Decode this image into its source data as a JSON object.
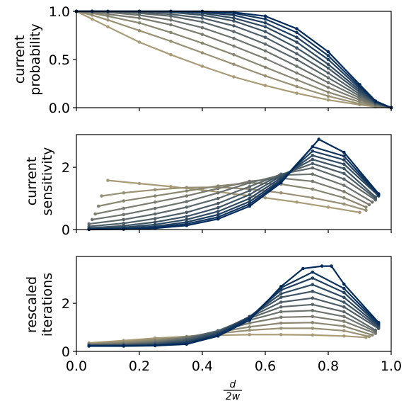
{
  "x_axis": {
    "label_numerator": "d",
    "label_denominator": "2w",
    "range": [
      0.0,
      1.0
    ],
    "tick_labels": [
      "0.0",
      "0.2",
      "0.4",
      "0.6",
      "0.8",
      "1.0"
    ],
    "tick_values": [
      0.0,
      0.2,
      0.4,
      0.6,
      0.8,
      1.0
    ]
  },
  "colors": {
    "palette_start": "#a99b76",
    "palette_end": "#002b5c"
  },
  "chart_data": [
    {
      "type": "line",
      "ylabel_lines": [
        "current",
        "probability"
      ],
      "ylim": [
        0.0,
        1.0
      ],
      "y_tick_labels": [
        "0.0",
        "0.5",
        "1.0"
      ],
      "y_tick_values": [
        0.0,
        0.5,
        1.0
      ],
      "grid": false,
      "series": [
        {
          "x": [
            0,
            0.05,
            0.1,
            0.2,
            0.3,
            0.4,
            0.5,
            0.6,
            0.7,
            0.8,
            0.9,
            0.95,
            1.0
          ],
          "y": [
            1.0,
            0.92,
            0.84,
            0.68,
            0.55,
            0.43,
            0.32,
            0.23,
            0.15,
            0.08,
            0.03,
            0.01,
            0.0
          ]
        },
        {
          "x": [
            0,
            0.05,
            0.1,
            0.2,
            0.3,
            0.4,
            0.5,
            0.6,
            0.7,
            0.8,
            0.9,
            0.95,
            1.0
          ],
          "y": [
            1.0,
            0.96,
            0.91,
            0.8,
            0.69,
            0.57,
            0.45,
            0.33,
            0.22,
            0.12,
            0.04,
            0.015,
            0.0
          ]
        },
        {
          "x": [
            0,
            0.05,
            0.1,
            0.2,
            0.3,
            0.4,
            0.5,
            0.6,
            0.7,
            0.8,
            0.9,
            0.95,
            1.0
          ],
          "y": [
            1.0,
            0.98,
            0.95,
            0.88,
            0.78,
            0.67,
            0.55,
            0.42,
            0.29,
            0.16,
            0.06,
            0.02,
            0.0
          ]
        },
        {
          "x": [
            0,
            0.05,
            0.1,
            0.2,
            0.3,
            0.4,
            0.5,
            0.6,
            0.7,
            0.8,
            0.9,
            0.95,
            1.0
          ],
          "y": [
            1.0,
            0.99,
            0.97,
            0.93,
            0.86,
            0.76,
            0.64,
            0.51,
            0.36,
            0.21,
            0.08,
            0.025,
            0.0
          ]
        },
        {
          "x": [
            0,
            0.05,
            0.1,
            0.2,
            0.3,
            0.4,
            0.5,
            0.6,
            0.7,
            0.8,
            0.9,
            0.95,
            1.0
          ],
          "y": [
            1.0,
            1.0,
            0.99,
            0.96,
            0.91,
            0.83,
            0.72,
            0.59,
            0.43,
            0.26,
            0.1,
            0.03,
            0.0
          ]
        },
        {
          "x": [
            0,
            0.05,
            0.1,
            0.2,
            0.3,
            0.4,
            0.5,
            0.6,
            0.7,
            0.8,
            0.9,
            0.95,
            1.0
          ],
          "y": [
            1.0,
            1.0,
            1.0,
            0.98,
            0.95,
            0.89,
            0.79,
            0.66,
            0.5,
            0.31,
            0.12,
            0.04,
            0.0
          ]
        },
        {
          "x": [
            0,
            0.05,
            0.1,
            0.2,
            0.3,
            0.4,
            0.5,
            0.6,
            0.7,
            0.8,
            0.9,
            0.95,
            1.0
          ],
          "y": [
            1.0,
            1.0,
            1.0,
            0.99,
            0.97,
            0.93,
            0.85,
            0.73,
            0.56,
            0.36,
            0.14,
            0.045,
            0.0
          ]
        },
        {
          "x": [
            0,
            0.05,
            0.1,
            0.2,
            0.3,
            0.4,
            0.5,
            0.6,
            0.7,
            0.8,
            0.9,
            0.95,
            1.0
          ],
          "y": [
            1.0,
            1.0,
            1.0,
            1.0,
            0.99,
            0.96,
            0.9,
            0.79,
            0.62,
            0.41,
            0.16,
            0.05,
            0.0
          ]
        },
        {
          "x": [
            0,
            0.05,
            0.1,
            0.2,
            0.3,
            0.4,
            0.5,
            0.6,
            0.7,
            0.8,
            0.9,
            0.95,
            1.0
          ],
          "y": [
            1.0,
            1.0,
            1.0,
            1.0,
            1.0,
            0.98,
            0.93,
            0.84,
            0.68,
            0.45,
            0.18,
            0.055,
            0.0
          ]
        },
        {
          "x": [
            0,
            0.05,
            0.1,
            0.2,
            0.3,
            0.4,
            0.5,
            0.6,
            0.7,
            0.8,
            0.9,
            0.95,
            1.0
          ],
          "y": [
            1.0,
            1.0,
            1.0,
            1.0,
            1.0,
            0.99,
            0.96,
            0.88,
            0.73,
            0.5,
            0.2,
            0.06,
            0.0
          ]
        },
        {
          "x": [
            0,
            0.05,
            0.1,
            0.2,
            0.3,
            0.4,
            0.5,
            0.6,
            0.7,
            0.8,
            0.9,
            0.95,
            1.0
          ],
          "y": [
            1.0,
            1.0,
            1.0,
            1.0,
            1.0,
            1.0,
            0.98,
            0.92,
            0.78,
            0.54,
            0.22,
            0.065,
            0.0
          ]
        },
        {
          "x": [
            0,
            0.05,
            0.1,
            0.2,
            0.3,
            0.4,
            0.5,
            0.6,
            0.7,
            0.8,
            0.9,
            0.95,
            1.0
          ],
          "y": [
            1.0,
            1.0,
            1.0,
            1.0,
            1.0,
            1.0,
            0.99,
            0.95,
            0.82,
            0.58,
            0.24,
            0.07,
            0.0
          ]
        }
      ]
    },
    {
      "type": "line",
      "ylabel_lines": [
        "current",
        "sensitivity"
      ],
      "ylim": [
        0.0,
        3.05
      ],
      "y_tick_labels": [
        "0",
        "2"
      ],
      "y_tick_values": [
        0,
        2
      ],
      "grid": false,
      "series": [
        {
          "x": [
            0.1,
            0.2,
            0.3,
            0.4,
            0.5,
            0.6,
            0.7,
            0.8,
            0.9
          ],
          "y": [
            1.58,
            1.48,
            1.38,
            1.27,
            1.15,
            1.02,
            0.88,
            0.72,
            0.55
          ]
        },
        {
          "x": [
            0.08,
            0.15,
            0.25,
            0.35,
            0.45,
            0.55,
            0.65,
            0.75,
            0.85,
            0.92
          ],
          "y": [
            1.08,
            1.18,
            1.28,
            1.35,
            1.36,
            1.3,
            1.18,
            1.02,
            0.82,
            0.62
          ]
        },
        {
          "x": [
            0.07,
            0.15,
            0.25,
            0.35,
            0.45,
            0.55,
            0.65,
            0.75,
            0.85,
            0.92
          ],
          "y": [
            0.75,
            0.92,
            1.08,
            1.24,
            1.4,
            1.5,
            1.46,
            1.3,
            1.02,
            0.72
          ]
        },
        {
          "x": [
            0.06,
            0.15,
            0.25,
            0.35,
            0.45,
            0.55,
            0.65,
            0.75,
            0.85,
            0.93
          ],
          "y": [
            0.5,
            0.68,
            0.88,
            1.08,
            1.32,
            1.55,
            1.65,
            1.55,
            1.22,
            0.8
          ]
        },
        {
          "x": [
            0.05,
            0.15,
            0.25,
            0.35,
            0.45,
            0.55,
            0.65,
            0.75,
            0.85,
            0.94
          ],
          "y": [
            0.32,
            0.48,
            0.68,
            0.9,
            1.18,
            1.5,
            1.75,
            1.78,
            1.42,
            0.88
          ]
        },
        {
          "x": [
            0.04,
            0.15,
            0.25,
            0.35,
            0.45,
            0.55,
            0.65,
            0.75,
            0.85,
            0.95
          ],
          "y": [
            0.18,
            0.32,
            0.5,
            0.72,
            1.0,
            1.38,
            1.78,
            1.98,
            1.62,
            0.95
          ]
        },
        {
          "x": [
            0.04,
            0.15,
            0.25,
            0.35,
            0.45,
            0.55,
            0.65,
            0.75,
            0.85,
            0.95
          ],
          "y": [
            0.1,
            0.2,
            0.35,
            0.55,
            0.84,
            1.25,
            1.76,
            2.12,
            1.8,
            1.0
          ]
        },
        {
          "x": [
            0.04,
            0.15,
            0.25,
            0.35,
            0.45,
            0.55,
            0.65,
            0.75,
            0.85,
            0.95
          ],
          "y": [
            0.05,
            0.12,
            0.24,
            0.42,
            0.7,
            1.12,
            1.72,
            2.25,
            1.96,
            1.05
          ]
        },
        {
          "x": [
            0.04,
            0.15,
            0.25,
            0.35,
            0.45,
            0.55,
            0.65,
            0.75,
            0.85,
            0.96
          ],
          "y": [
            0.03,
            0.07,
            0.16,
            0.32,
            0.58,
            1.0,
            1.66,
            2.38,
            2.1,
            1.08
          ]
        },
        {
          "x": [
            0.04,
            0.15,
            0.25,
            0.35,
            0.45,
            0.55,
            0.65,
            0.75,
            0.85,
            0.96
          ],
          "y": [
            0.02,
            0.04,
            0.1,
            0.24,
            0.48,
            0.9,
            1.6,
            2.52,
            2.24,
            1.1
          ]
        },
        {
          "x": [
            0.04,
            0.15,
            0.25,
            0.35,
            0.45,
            0.55,
            0.65,
            0.75,
            0.85,
            0.96
          ],
          "y": [
            0.01,
            0.02,
            0.06,
            0.18,
            0.4,
            0.82,
            1.55,
            2.66,
            2.36,
            1.12
          ]
        },
        {
          "x": [
            0.04,
            0.15,
            0.25,
            0.35,
            0.45,
            0.55,
            0.65,
            0.77,
            0.85,
            0.96
          ],
          "y": [
            0.0,
            0.01,
            0.04,
            0.13,
            0.34,
            0.75,
            1.5,
            2.9,
            2.48,
            1.15
          ]
        }
      ]
    },
    {
      "type": "line",
      "ylabel_lines": [
        "rescaled",
        "iterations"
      ],
      "ylim": [
        0.0,
        3.95
      ],
      "y_tick_labels": [
        "0",
        "2"
      ],
      "y_tick_values": [
        0,
        2
      ],
      "grid": false,
      "series": [
        {
          "x": [
            0.04,
            0.15,
            0.25,
            0.35,
            0.45,
            0.55,
            0.65,
            0.75,
            0.85,
            0.92
          ],
          "y": [
            0.35,
            0.45,
            0.55,
            0.62,
            0.67,
            0.7,
            0.7,
            0.68,
            0.64,
            0.58
          ]
        },
        {
          "x": [
            0.04,
            0.15,
            0.25,
            0.35,
            0.45,
            0.55,
            0.65,
            0.75,
            0.85,
            0.93
          ],
          "y": [
            0.32,
            0.4,
            0.5,
            0.62,
            0.75,
            0.88,
            0.96,
            0.96,
            0.86,
            0.62
          ]
        },
        {
          "x": [
            0.04,
            0.15,
            0.25,
            0.35,
            0.45,
            0.55,
            0.65,
            0.75,
            0.85,
            0.94
          ],
          "y": [
            0.3,
            0.36,
            0.46,
            0.6,
            0.8,
            1.02,
            1.18,
            1.2,
            1.05,
            0.68
          ]
        },
        {
          "x": [
            0.04,
            0.15,
            0.25,
            0.35,
            0.45,
            0.55,
            0.65,
            0.75,
            0.85,
            0.95
          ],
          "y": [
            0.28,
            0.33,
            0.42,
            0.58,
            0.84,
            1.18,
            1.42,
            1.45,
            1.25,
            0.75
          ]
        },
        {
          "x": [
            0.04,
            0.15,
            0.25,
            0.35,
            0.45,
            0.55,
            0.65,
            0.75,
            0.85,
            0.95
          ],
          "y": [
            0.27,
            0.3,
            0.38,
            0.55,
            0.86,
            1.3,
            1.65,
            1.7,
            1.45,
            0.82
          ]
        },
        {
          "x": [
            0.04,
            0.15,
            0.25,
            0.35,
            0.45,
            0.55,
            0.65,
            0.75,
            0.85,
            0.95
          ],
          "y": [
            0.26,
            0.28,
            0.35,
            0.52,
            0.86,
            1.38,
            1.85,
            1.95,
            1.65,
            0.88
          ]
        },
        {
          "x": [
            0.04,
            0.15,
            0.25,
            0.35,
            0.45,
            0.55,
            0.65,
            0.75,
            0.85,
            0.96
          ],
          "y": [
            0.25,
            0.27,
            0.32,
            0.48,
            0.84,
            1.42,
            2.05,
            2.22,
            1.85,
            0.95
          ]
        },
        {
          "x": [
            0.04,
            0.15,
            0.25,
            0.35,
            0.45,
            0.55,
            0.65,
            0.75,
            0.85,
            0.96
          ],
          "y": [
            0.25,
            0.26,
            0.3,
            0.44,
            0.8,
            1.45,
            2.25,
            2.5,
            2.05,
            1.0
          ]
        },
        {
          "x": [
            0.04,
            0.15,
            0.25,
            0.35,
            0.45,
            0.55,
            0.65,
            0.75,
            0.85,
            0.96
          ],
          "y": [
            0.24,
            0.25,
            0.28,
            0.4,
            0.76,
            1.45,
            2.4,
            2.78,
            2.25,
            1.05
          ]
        },
        {
          "x": [
            0.04,
            0.15,
            0.25,
            0.35,
            0.45,
            0.55,
            0.65,
            0.75,
            0.85,
            0.96
          ],
          "y": [
            0.24,
            0.24,
            0.26,
            0.36,
            0.72,
            1.42,
            2.55,
            3.05,
            2.45,
            1.1
          ]
        },
        {
          "x": [
            0.04,
            0.15,
            0.25,
            0.35,
            0.45,
            0.55,
            0.65,
            0.75,
            0.85,
            0.96
          ],
          "y": [
            0.23,
            0.23,
            0.25,
            0.33,
            0.68,
            1.38,
            2.65,
            3.3,
            2.62,
            1.15
          ]
        },
        {
          "x": [
            0.04,
            0.15,
            0.25,
            0.35,
            0.45,
            0.55,
            0.65,
            0.72,
            0.78,
            0.81,
            0.85,
            0.96
          ],
          "y": [
            0.22,
            0.22,
            0.24,
            0.3,
            0.64,
            1.3,
            2.7,
            3.45,
            3.55,
            3.55,
            2.8,
            1.2
          ]
        }
      ]
    }
  ]
}
